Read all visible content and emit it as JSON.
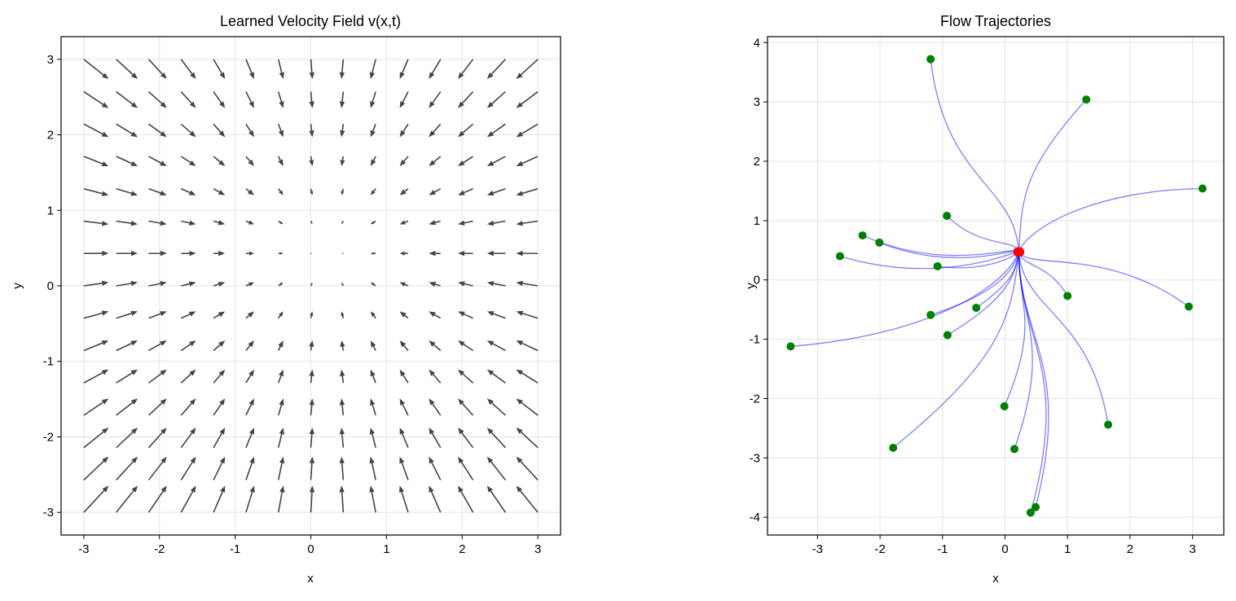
{
  "chart_data": [
    {
      "type": "quiver",
      "title": "Learned Velocity Field v(x,t)",
      "xlabel": "x",
      "ylabel": "y",
      "xlim": [
        -3.3,
        3.3
      ],
      "ylim": [
        -3.3,
        3.3
      ],
      "xticks": [
        -3,
        -2,
        -1,
        0,
        1,
        2,
        3
      ],
      "yticks": [
        -3,
        -2,
        -1,
        0,
        1,
        2,
        3
      ],
      "xtick_labels": [
        "-3",
        "-2",
        "-1",
        "0",
        "1",
        "2",
        "3"
      ],
      "ytick_labels": [
        "-3",
        "-2",
        "-1",
        "0",
        "1",
        "2",
        "3"
      ],
      "grid": true,
      "grid_range": [
        -3,
        3
      ],
      "grid_points": 15,
      "field_center": [
        0.2,
        0.45
      ],
      "arrow_color": "#444444"
    },
    {
      "type": "line",
      "title": "Flow Trajectories",
      "xlabel": "x",
      "ylabel": "y",
      "xlim": [
        -3.8,
        3.5
      ],
      "ylim": [
        -4.3,
        4.1
      ],
      "xticks": [
        -3,
        -2,
        -1,
        0,
        1,
        2,
        3
      ],
      "yticks": [
        -4,
        -3,
        -2,
        -1,
        0,
        1,
        2,
        3,
        4
      ],
      "xtick_labels": [
        "-3",
        "-2",
        "-1",
        "0",
        "1",
        "2",
        "3"
      ],
      "ytick_labels": [
        "-4",
        "-3",
        "-2",
        "-1",
        "0",
        "1",
        "2",
        "3",
        "4"
      ],
      "grid": true,
      "line_color": "#0000ff",
      "start_color": "#008000",
      "end_color": "#ff0000",
      "end_point": [
        0.22,
        0.48
      ],
      "start_points": [
        [
          -1.19,
          3.72
        ],
        [
          1.3,
          3.04
        ],
        [
          3.16,
          1.54
        ],
        [
          -0.93,
          1.08
        ],
        [
          -2.28,
          0.75
        ],
        [
          -2.01,
          0.63
        ],
        [
          -2.64,
          0.4
        ],
        [
          -1.08,
          0.23
        ],
        [
          1.0,
          -0.27
        ],
        [
          2.94,
          -0.45
        ],
        [
          -0.46,
          -0.47
        ],
        [
          -1.19,
          -0.59
        ],
        [
          -0.92,
          -0.93
        ],
        [
          -3.43,
          -1.12
        ],
        [
          1.65,
          -2.44
        ],
        [
          -0.01,
          -2.13
        ],
        [
          0.15,
          -2.85
        ],
        [
          -1.79,
          -2.83
        ],
        [
          0.49,
          -3.83
        ],
        [
          0.41,
          -3.92
        ]
      ]
    }
  ]
}
